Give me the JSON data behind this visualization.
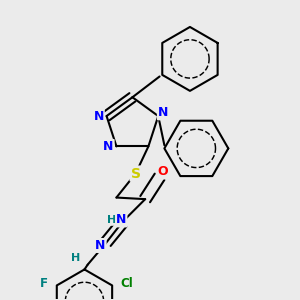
{
  "background_color": "#ebebeb",
  "atom_colors": {
    "N": "#0000ff",
    "O": "#ff0000",
    "S": "#cccc00",
    "F": "#008080",
    "Cl": "#008000",
    "C": "#000000",
    "H": "#008080"
  },
  "bond_color": "#000000",
  "bond_lw": 1.5,
  "font_size": 9,
  "fig_w": 3.0,
  "fig_h": 3.0,
  "dpi": 100
}
